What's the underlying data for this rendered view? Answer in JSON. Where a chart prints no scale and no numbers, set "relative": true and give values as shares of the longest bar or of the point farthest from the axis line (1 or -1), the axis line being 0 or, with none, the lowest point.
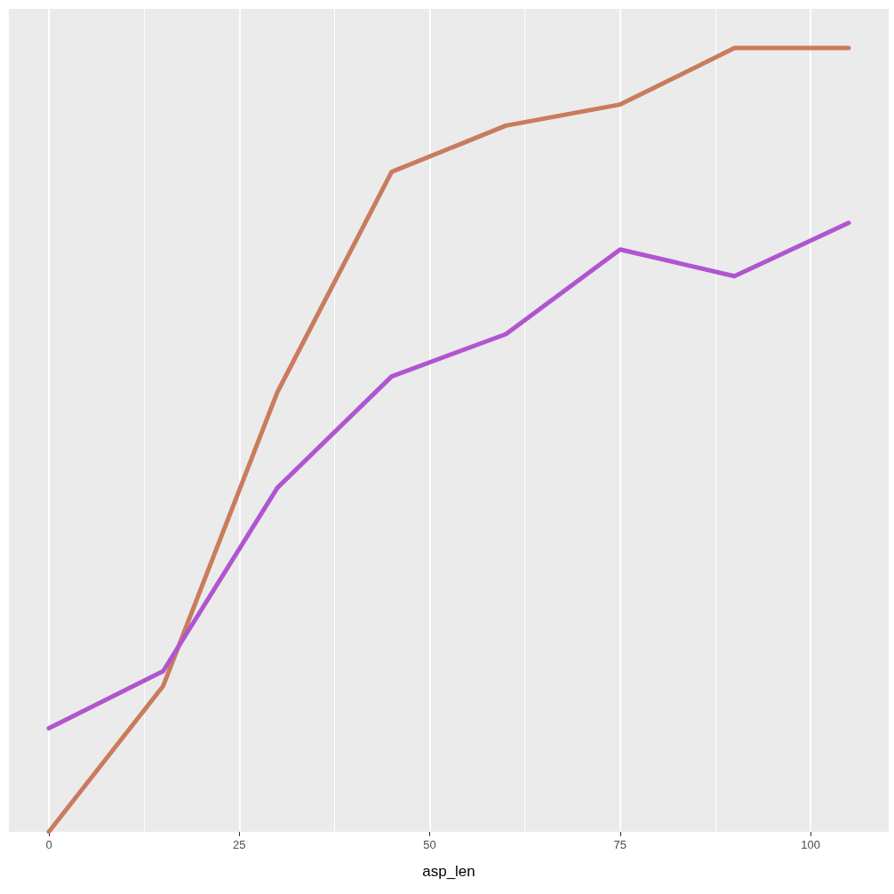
{
  "chart_data": {
    "type": "line",
    "relative": true,
    "xlabel": "asp_len",
    "x": [
      0,
      15,
      30,
      45,
      60,
      75,
      90,
      105
    ],
    "xlim": [
      -5.25,
      110.25
    ],
    "xticks": [
      0,
      25,
      50,
      75,
      100
    ],
    "grid": "x",
    "marker": "none",
    "line_style": "solid",
    "series": [
      {
        "color": "#c97c5d",
        "values": [
          0,
          0.186,
          0.561,
          0.842,
          0.901,
          0.928,
          1,
          1
        ]
      },
      {
        "color": "#b055d0",
        "values": [
          0.132,
          0.205,
          0.439,
          0.581,
          0.635,
          0.743,
          0.709,
          0.777
        ]
      }
    ]
  }
}
